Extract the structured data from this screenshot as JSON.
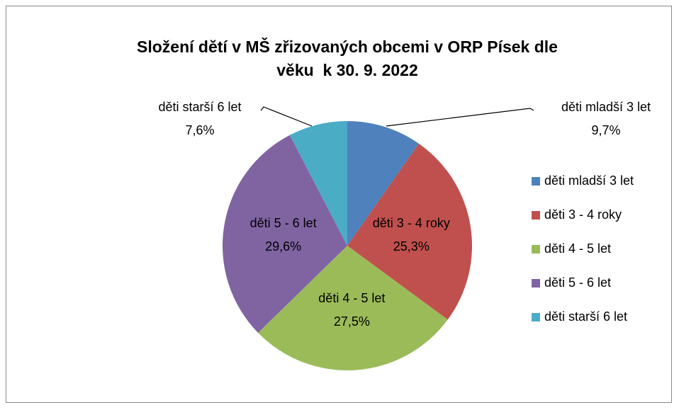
{
  "chart_data": {
    "type": "pie",
    "title": "Složení dětí v MŠ zřizovaných obcemi v ORP Písek dle věku  k 30. 9. 2022",
    "categories": [
      "děti mladší 3 let",
      "děti 3 - 4 roky",
      "děti 4 - 5 let",
      "děti 5 - 6 let",
      "děti starší 6 let"
    ],
    "values": [
      9.7,
      25.3,
      27.5,
      29.6,
      7.6
    ],
    "value_labels": [
      "9,7%",
      "25,3%",
      "27,5%",
      "29,6%",
      "7,6%"
    ],
    "colors": [
      "#4f81bd",
      "#c0504d",
      "#9bbb59",
      "#8064a2",
      "#4bacc6"
    ],
    "legend": "right"
  }
}
